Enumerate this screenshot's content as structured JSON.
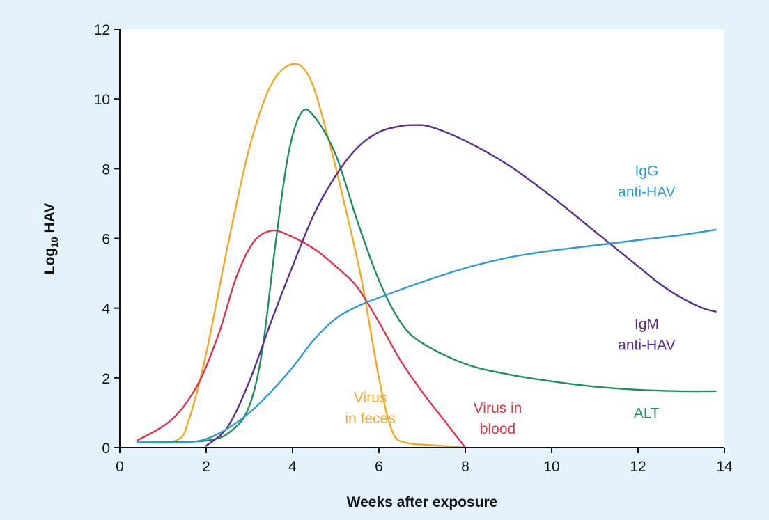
{
  "chart_data": {
    "type": "line",
    "xlabel": "Weeks after exposure",
    "ylabel_main": "Log",
    "ylabel_sub": "10",
    "ylabel_rest": " HAV",
    "xlim": [
      0,
      14
    ],
    "ylim": [
      0,
      12
    ],
    "xticks": [
      "0",
      "2",
      "4",
      "6",
      "8",
      "10",
      "12",
      "14"
    ],
    "yticks": [
      "0",
      "2",
      "4",
      "6",
      "8",
      "10",
      "12"
    ],
    "grid": false,
    "series": [
      {
        "key": "feces",
        "label_lines": [
          "Virus",
          "in feces"
        ],
        "color": "#f5a623",
        "points": [
          [
            0.4,
            0.15
          ],
          [
            1.3,
            0.2
          ],
          [
            1.6,
            0.8
          ],
          [
            2.0,
            2.7
          ],
          [
            2.5,
            5.8
          ],
          [
            3.0,
            8.6
          ],
          [
            3.5,
            10.4
          ],
          [
            4.0,
            11.0
          ],
          [
            4.4,
            10.6
          ],
          [
            4.8,
            9.0
          ],
          [
            5.2,
            7.0
          ],
          [
            5.6,
            4.8
          ],
          [
            6.0,
            2.0
          ],
          [
            6.3,
            0.5
          ],
          [
            6.6,
            0.15
          ],
          [
            7.5,
            0.05
          ],
          [
            8.0,
            0.0
          ]
        ]
      },
      {
        "key": "blood",
        "label_lines": [
          "Virus in",
          "blood"
        ],
        "color": "#e0334a",
        "points": [
          [
            0.4,
            0.2
          ],
          [
            1.2,
            0.8
          ],
          [
            1.8,
            1.8
          ],
          [
            2.3,
            3.3
          ],
          [
            2.7,
            4.9
          ],
          [
            3.1,
            5.9
          ],
          [
            3.5,
            6.22
          ],
          [
            3.9,
            6.1
          ],
          [
            4.5,
            5.7
          ],
          [
            5.0,
            5.2
          ],
          [
            5.5,
            4.6
          ],
          [
            6.0,
            3.6
          ],
          [
            6.5,
            2.5
          ],
          [
            7.0,
            1.6
          ],
          [
            7.5,
            0.8
          ],
          [
            8.0,
            0.0
          ]
        ]
      },
      {
        "key": "alt",
        "label_lines": [
          "ALT"
        ],
        "color": "#1f8f5f",
        "points": [
          [
            0.4,
            0.15
          ],
          [
            2.0,
            0.2
          ],
          [
            2.6,
            0.5
          ],
          [
            3.0,
            1.2
          ],
          [
            3.3,
            2.8
          ],
          [
            3.6,
            5.8
          ],
          [
            3.9,
            8.4
          ],
          [
            4.2,
            9.6
          ],
          [
            4.5,
            9.5
          ],
          [
            5.0,
            8.4
          ],
          [
            5.5,
            6.5
          ],
          [
            6.0,
            4.8
          ],
          [
            6.5,
            3.6
          ],
          [
            7.0,
            3.0
          ],
          [
            8.0,
            2.4
          ],
          [
            9.0,
            2.1
          ],
          [
            10.0,
            1.9
          ],
          [
            11.0,
            1.75
          ],
          [
            12.0,
            1.66
          ],
          [
            13.0,
            1.62
          ],
          [
            13.8,
            1.62
          ]
        ]
      },
      {
        "key": "igm",
        "label_lines": [
          "IgM",
          "anti-HAV"
        ],
        "color": "#5b2d8e",
        "points": [
          [
            2.0,
            0.05
          ],
          [
            2.5,
            0.6
          ],
          [
            3.0,
            1.9
          ],
          [
            3.5,
            3.6
          ],
          [
            4.0,
            5.2
          ],
          [
            4.5,
            6.7
          ],
          [
            5.0,
            7.8
          ],
          [
            5.5,
            8.6
          ],
          [
            6.0,
            9.05
          ],
          [
            6.5,
            9.22
          ],
          [
            6.8,
            9.25
          ],
          [
            7.2,
            9.2
          ],
          [
            8.0,
            8.8
          ],
          [
            9.0,
            8.1
          ],
          [
            10.0,
            7.2
          ],
          [
            11.0,
            6.2
          ],
          [
            12.0,
            5.2
          ],
          [
            12.5,
            4.7
          ],
          [
            13.0,
            4.3
          ],
          [
            13.5,
            4.0
          ],
          [
            13.8,
            3.9
          ]
        ]
      },
      {
        "key": "igg",
        "label_lines": [
          "IgG",
          "anti-HAV"
        ],
        "color": "#2e9ad9",
        "points": [
          [
            0.4,
            0.15
          ],
          [
            1.5,
            0.15
          ],
          [
            2.0,
            0.25
          ],
          [
            2.5,
            0.55
          ],
          [
            3.0,
            1.0
          ],
          [
            3.5,
            1.6
          ],
          [
            4.0,
            2.3
          ],
          [
            4.5,
            3.1
          ],
          [
            5.0,
            3.7
          ],
          [
            5.5,
            4.05
          ],
          [
            6.0,
            4.3
          ],
          [
            7.0,
            4.75
          ],
          [
            8.0,
            5.15
          ],
          [
            9.0,
            5.45
          ],
          [
            10.0,
            5.65
          ],
          [
            11.0,
            5.8
          ],
          [
            12.0,
            5.95
          ],
          [
            13.0,
            6.1
          ],
          [
            13.8,
            6.25
          ]
        ]
      }
    ]
  }
}
